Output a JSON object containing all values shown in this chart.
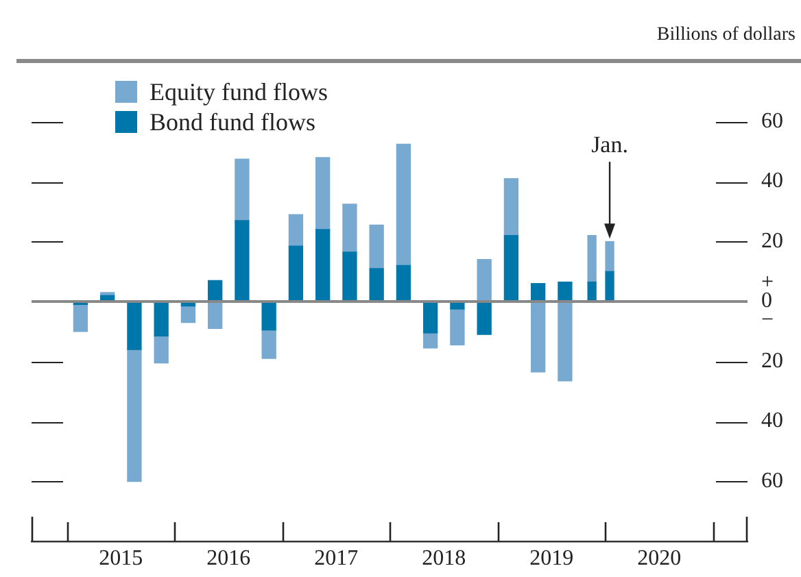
{
  "chart_data": {
    "type": "bar",
    "stacked": true,
    "ylabel": "Billions of dollars",
    "x": [
      2015.125,
      2015.375,
      2015.625,
      2015.875,
      2016.125,
      2016.375,
      2016.625,
      2016.875,
      2017.125,
      2017.375,
      2017.625,
      2017.875,
      2018.125,
      2018.375,
      2018.625,
      2018.875,
      2019.125,
      2019.375,
      2019.625,
      2019.875,
      2020.04
    ],
    "series": [
      {
        "name": "Bond fund flows",
        "color": "#0077aa",
        "values": [
          -1,
          2,
          -16,
          -11.5,
          -1.5,
          7,
          27,
          -9.5,
          18.5,
          24,
          16.5,
          11,
          12,
          -10.5,
          -2.5,
          -11,
          22,
          6,
          6.5,
          6.5,
          10
        ]
      },
      {
        "name": "Equity fund flows",
        "color": "#78a9d0",
        "values": [
          -9,
          1,
          -44,
          -9,
          -5.5,
          -9,
          20.5,
          -9.5,
          10.5,
          24,
          16,
          14.5,
          40.5,
          -5,
          -12,
          14,
          19,
          -23.5,
          -26.5,
          15.5,
          10
        ]
      }
    ],
    "xlim": [
      2014.67,
      2021.32
    ],
    "xticks": [
      {
        "value": 2015,
        "label": null
      },
      {
        "value": 2015.5,
        "label": "2015"
      },
      {
        "value": 2016,
        "label": null
      },
      {
        "value": 2016.5,
        "label": "2016"
      },
      {
        "value": 2017,
        "label": null
      },
      {
        "value": 2017.5,
        "label": "2017"
      },
      {
        "value": 2018,
        "label": null
      },
      {
        "value": 2018.5,
        "label": "2018"
      },
      {
        "value": 2019,
        "label": null
      },
      {
        "value": 2019.5,
        "label": "2019"
      },
      {
        "value": 2020,
        "label": null
      },
      {
        "value": 2020.5,
        "label": "2020"
      },
      {
        "value": 2021,
        "label": null
      }
    ],
    "ylim": [
      -80,
      80
    ],
    "yticks": [
      {
        "value": 60,
        "label": "60"
      },
      {
        "value": 40,
        "label": "40"
      },
      {
        "value": 20,
        "label": "20"
      },
      {
        "value": 0,
        "label": "+\n0\n−"
      },
      {
        "value": -20,
        "label": "20"
      },
      {
        "value": -40,
        "label": "40"
      },
      {
        "value": -60,
        "label": "60"
      }
    ],
    "ref_lines": [
      {
        "axis": "y",
        "value": 0,
        "color": "#888888"
      }
    ],
    "annotations": [
      {
        "text": "Jan.",
        "x": 2020.04,
        "y": 21
      }
    ],
    "legend": "top left",
    "grid": false
  }
}
